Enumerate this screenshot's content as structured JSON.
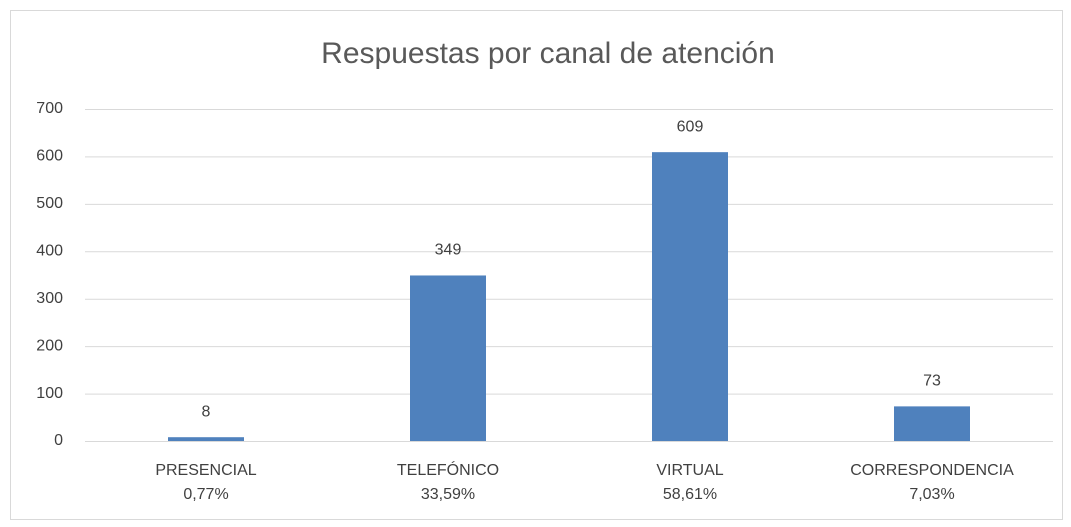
{
  "chart_data": {
    "type": "bar",
    "title": "Respuestas por canal de atención",
    "categories": [
      "PRESENCIAL",
      "TELEFÓNICO",
      "VIRTUAL",
      "CORRESPONDENCIA"
    ],
    "category_percent_labels": [
      "0,77%",
      "33,59%",
      "58,61%",
      "7,03%"
    ],
    "values": [
      8,
      349,
      609,
      73
    ],
    "color": "#4f81bd",
    "ylim": [
      0,
      700
    ],
    "yticks": [
      0,
      100,
      200,
      300,
      400,
      500,
      600,
      700
    ],
    "grid": true,
    "data_labels": true
  }
}
